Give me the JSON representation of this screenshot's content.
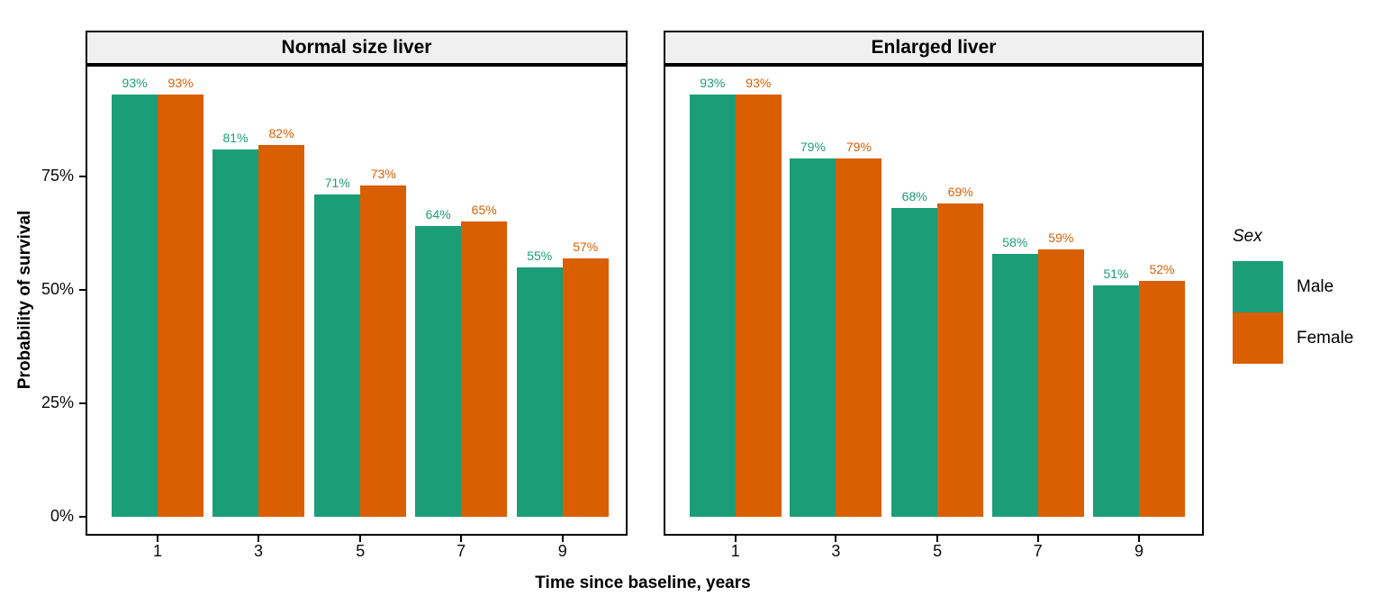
{
  "chart_data": {
    "type": "bar",
    "title": "",
    "xlabel": "Time since baseline, years",
    "ylabel": "Probability of survival",
    "x_ticks": [
      "1",
      "3",
      "5",
      "7",
      "9"
    ],
    "y_ticks": [
      {
        "value": 0,
        "label": "0%"
      },
      {
        "value": 25,
        "label": "25%"
      },
      {
        "value": 50,
        "label": "50%"
      },
      {
        "value": 75,
        "label": "75%"
      }
    ],
    "ylim": [
      0,
      104
    ],
    "grid": false,
    "unit": "%",
    "legend": {
      "title": "Sex",
      "position": "right",
      "entries": [
        {
          "label": "Male",
          "color": "#1B9E77"
        },
        {
          "label": "Female",
          "color": "#D95F02"
        }
      ]
    },
    "facets": [
      {
        "title": "Normal size liver",
        "categories": [
          "1",
          "3",
          "5",
          "7",
          "9"
        ],
        "series": [
          {
            "name": "Male",
            "color": "#1B9E77",
            "values": [
              93,
              81,
              71,
              64,
              55
            ],
            "labels": [
              "93%",
              "81%",
              "71%",
              "64%",
              "55%"
            ]
          },
          {
            "name": "Female",
            "color": "#D95F02",
            "values": [
              93,
              82,
              73,
              65,
              57
            ],
            "labels": [
              "93%",
              "82%",
              "73%",
              "65%",
              "57%"
            ]
          }
        ]
      },
      {
        "title": "Enlarged liver",
        "categories": [
          "1",
          "3",
          "5",
          "7",
          "9"
        ],
        "series": [
          {
            "name": "Male",
            "color": "#1B9E77",
            "values": [
              93,
              79,
              68,
              58,
              51
            ],
            "labels": [
              "93%",
              "79%",
              "68%",
              "58%",
              "51%"
            ]
          },
          {
            "name": "Female",
            "color": "#D95F02",
            "values": [
              93,
              79,
              69,
              59,
              52
            ],
            "labels": [
              "93%",
              "79%",
              "69%",
              "59%",
              "52%"
            ]
          }
        ]
      }
    ]
  },
  "colors": {
    "male": "#1B9E77",
    "female": "#D95F02",
    "strip_background": "#F0F0F0",
    "panel_border": "#000000",
    "axis_text": "#0a0a0a"
  }
}
